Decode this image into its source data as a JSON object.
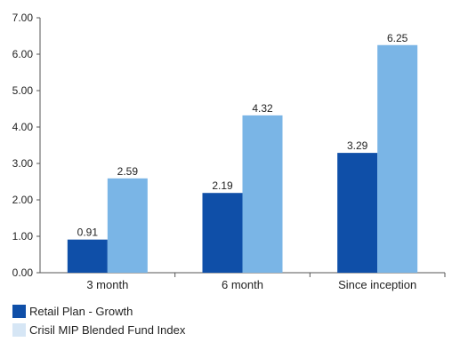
{
  "chart_data": {
    "type": "bar",
    "categories": [
      "3 month",
      "6 month",
      "Since inception"
    ],
    "series": [
      {
        "name": "Retail Plan - Growth",
        "values": [
          0.91,
          2.19,
          3.29
        ],
        "color": "#0f4fa8"
      },
      {
        "name": "Crisil MIP Blended Fund Index",
        "values": [
          2.59,
          4.32,
          6.25
        ],
        "color": "#7ab5e6"
      }
    ],
    "y_ticks": [
      "0.00",
      "1.00",
      "2.00",
      "3.00",
      "4.00",
      "5.00",
      "6.00",
      "7.00"
    ],
    "ylim": [
      0,
      7
    ],
    "legend_colors": [
      "#0f4fa8",
      "#d6e6f5"
    ],
    "legend_placement": "bottom-left",
    "grid": false
  }
}
